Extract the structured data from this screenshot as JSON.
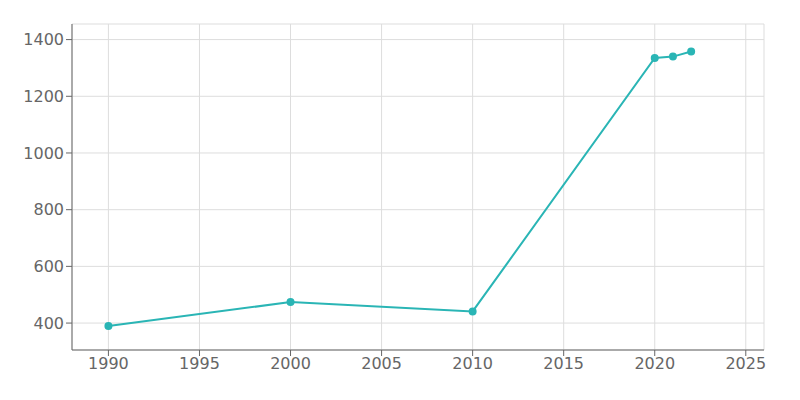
{
  "chart_data": {
    "type": "line",
    "x": [
      1990,
      2000,
      2010,
      2020,
      2021,
      2022
    ],
    "values": [
      390,
      474,
      441,
      1335,
      1340,
      1358
    ],
    "color": "#2ab5b5",
    "marker": "circle",
    "xlim": [
      1988,
      2026
    ],
    "ylim": [
      305,
      1455
    ],
    "xticks": [
      1990,
      1995,
      2000,
      2005,
      2010,
      2015,
      2020,
      2025
    ],
    "yticks": [
      400,
      600,
      800,
      1000,
      1200,
      1400
    ],
    "grid": true
  }
}
